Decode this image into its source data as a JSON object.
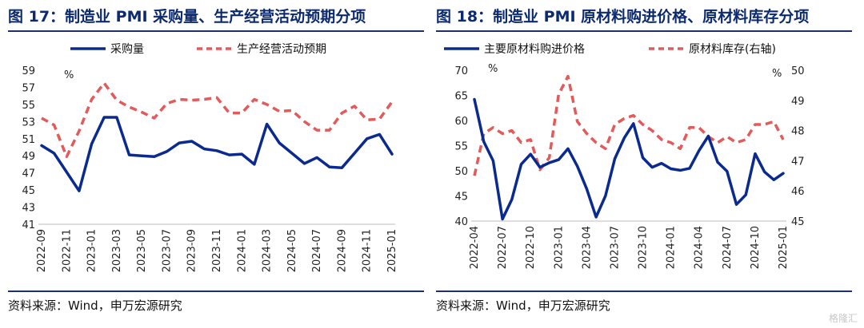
{
  "panels": [
    {
      "title": "图 17：制造业 PMI 采购量、生产经营活动预期分项",
      "source": "资料来源：Wind，申万宏源研究"
    },
    {
      "title": "图 18：制造业 PMI 原材料购进价格、原材料库存分项",
      "source": "资料来源：Wind，申万宏源研究"
    }
  ],
  "watermark": "格隆汇",
  "colors": {
    "primary": "#0b2a8f",
    "secondary": "#e35a5a",
    "title": "#0b2a6f",
    "rule": "#1f2f6b"
  },
  "chart_data": [
    {
      "type": "line",
      "categories": [
        "2022-09",
        "2022-10",
        "2022-11",
        "2022-12",
        "2023-01",
        "2023-02",
        "2023-03",
        "2023-04",
        "2023-05",
        "2023-06",
        "2023-07",
        "2023-08",
        "2023-09",
        "2023-10",
        "2023-11",
        "2023-12",
        "2024-01",
        "2024-02",
        "2024-03",
        "2024-04",
        "2024-05",
        "2024-06",
        "2024-07",
        "2024-08",
        "2024-09",
        "2024-10",
        "2024-11",
        "2024-12",
        "2025-01"
      ],
      "tick_labels": [
        "2022-09",
        "2022-11",
        "2023-01",
        "2023-03",
        "2023-05",
        "2023-07",
        "2023-09",
        "2023-11",
        "2024-01",
        "2024-03",
        "2024-05",
        "2024-07",
        "2024-09",
        "2024-11",
        "2025-01"
      ],
      "series": [
        {
          "name": "采购量",
          "style": "solid",
          "values": [
            50.2,
            49.3,
            47.1,
            44.9,
            50.4,
            53.5,
            53.5,
            49.1,
            49.0,
            48.9,
            49.5,
            50.5,
            50.7,
            49.8,
            49.6,
            49.1,
            49.2,
            48.0,
            52.7,
            50.5,
            49.3,
            48.1,
            48.8,
            47.7,
            47.6,
            49.3,
            51.0,
            51.5,
            49.2
          ]
        },
        {
          "name": "生产经营活动预期",
          "style": "dashed",
          "values": [
            53.4,
            52.6,
            48.9,
            51.9,
            55.6,
            57.5,
            55.5,
            54.7,
            54.1,
            53.4,
            55.1,
            55.6,
            55.5,
            55.6,
            55.8,
            54.0,
            54.0,
            55.6,
            55.0,
            54.2,
            54.3,
            53.0,
            52.0,
            52.0,
            54.0,
            54.8,
            53.2,
            53.3,
            55.3
          ]
        }
      ],
      "ylim": [
        41,
        59
      ],
      "yticks": [
        41,
        43,
        45,
        47,
        49,
        51,
        53,
        55,
        57,
        59
      ],
      "yunit": "%",
      "legend": "top"
    },
    {
      "type": "line",
      "categories": [
        "2022-04",
        "2022-05",
        "2022-06",
        "2022-07",
        "2022-08",
        "2022-09",
        "2022-10",
        "2022-11",
        "2022-12",
        "2023-01",
        "2023-02",
        "2023-03",
        "2023-04",
        "2023-05",
        "2023-06",
        "2023-07",
        "2023-08",
        "2023-09",
        "2023-10",
        "2023-11",
        "2023-12",
        "2024-01",
        "2024-02",
        "2024-03",
        "2024-04",
        "2024-05",
        "2024-06",
        "2024-07",
        "2024-08",
        "2024-09",
        "2024-10",
        "2024-11",
        "2024-12",
        "2025-01"
      ],
      "tick_labels": [
        "2022-04",
        "2022-07",
        "2022-10",
        "2023-01",
        "2023-04",
        "2023-07",
        "2023-10",
        "2024-01",
        "2024-04",
        "2024-07",
        "2024-10",
        "2025-01"
      ],
      "series": [
        {
          "name": "主要原材料购进价格",
          "axis": "left",
          "style": "solid",
          "values": [
            64.2,
            55.8,
            52.0,
            40.4,
            44.3,
            51.3,
            53.3,
            50.7,
            51.6,
            52.2,
            54.4,
            50.9,
            46.4,
            40.8,
            45.0,
            52.4,
            56.5,
            59.4,
            52.6,
            50.7,
            51.5,
            50.4,
            50.1,
            50.5,
            54.0,
            56.9,
            51.7,
            49.9,
            43.3,
            45.2,
            53.4,
            49.8,
            48.2,
            49.5
          ]
        },
        {
          "name": "原材料库存(右轴)",
          "axis": "right",
          "style": "dashed",
          "values": [
            46.5,
            47.9,
            48.1,
            47.9,
            48.0,
            47.6,
            47.7,
            46.7,
            47.1,
            49.2,
            49.8,
            48.3,
            47.9,
            47.6,
            47.4,
            48.2,
            48.4,
            48.5,
            48.2,
            48.0,
            47.7,
            47.6,
            47.4,
            48.1,
            48.1,
            47.8,
            47.6,
            47.8,
            47.6,
            47.7,
            48.2,
            48.2,
            48.3,
            47.7
          ]
        }
      ],
      "ylim": [
        40,
        70
      ],
      "yticks": [
        40,
        45,
        50,
        55,
        60,
        65,
        70
      ],
      "y2lim": [
        45,
        50
      ],
      "y2ticks": [
        45,
        46,
        47,
        48,
        49,
        50
      ],
      "yunit": "%",
      "y2unit": "%",
      "legend": "top"
    }
  ]
}
